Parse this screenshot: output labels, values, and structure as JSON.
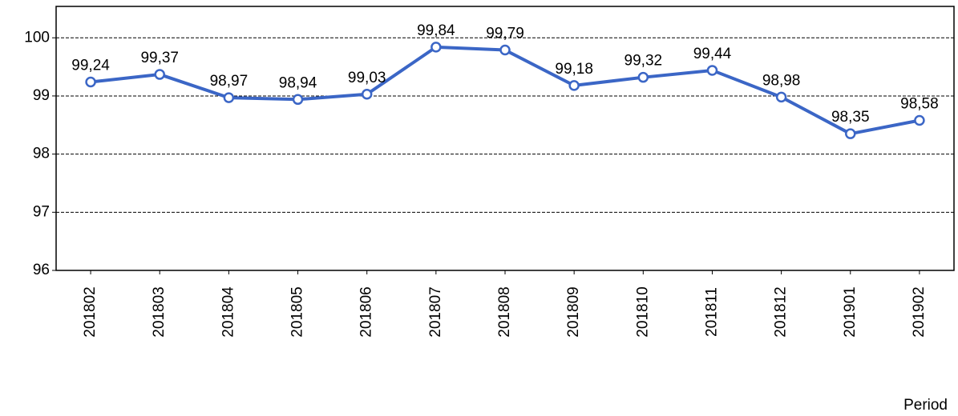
{
  "chart_data": {
    "type": "line",
    "x_label": "Period",
    "categories": [
      "201802",
      "201803",
      "201804",
      "201805",
      "201806",
      "201807",
      "201808",
      "201809",
      "201810",
      "201811",
      "201812",
      "201901",
      "201902"
    ],
    "series": [
      {
        "color": "#3b66c6",
        "values": [
          99.24,
          99.37,
          98.97,
          98.94,
          99.03,
          99.84,
          99.79,
          99.18,
          99.32,
          99.44,
          98.98,
          98.35,
          98.58
        ],
        "value_labels": [
          "99,24",
          "99,37",
          "98,97",
          "98,94",
          "99,03",
          "99,84",
          "99,79",
          "99,18",
          "99,32",
          "99,44",
          "98,98",
          "98,35",
          "98,58"
        ]
      }
    ],
    "ylim": [
      96,
      100.54
    ],
    "yticks": [
      96,
      97,
      98,
      99,
      100
    ],
    "grid": true
  }
}
